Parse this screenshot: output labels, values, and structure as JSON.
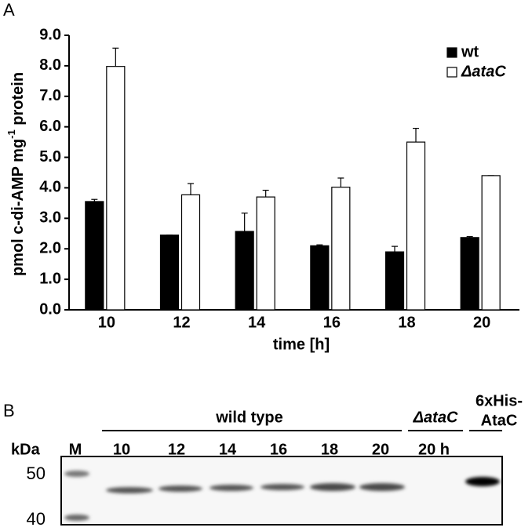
{
  "chart_data": {
    "type": "bar",
    "panel": "A",
    "y_label": [
      "pmol c-di-AMP mg",
      "-1",
      " protein"
    ],
    "x_label": "time [h]",
    "categories": [
      "10",
      "12",
      "14",
      "16",
      "18",
      "20"
    ],
    "series": [
      {
        "name": "wt",
        "color": "#000000",
        "values": [
          3.55,
          2.45,
          2.57,
          2.1,
          1.9,
          2.37
        ],
        "errors": [
          0.07,
          0,
          0.6,
          0.03,
          0.18,
          0.03
        ]
      },
      {
        "name": "ΔataC",
        "color": "#ffffff",
        "values": [
          7.98,
          3.77,
          3.7,
          4.02,
          5.5,
          4.4
        ],
        "errors": [
          0.6,
          0.37,
          0.22,
          0.3,
          0.45,
          0
        ]
      }
    ],
    "ylim": [
      0,
      9
    ],
    "yticks": [
      {
        "value": 0,
        "label": "0.0"
      },
      {
        "value": 1,
        "label": "1.0"
      },
      {
        "value": 2,
        "label": "2.0"
      },
      {
        "value": 3,
        "label": "3.0"
      },
      {
        "value": 4,
        "label": "4.0"
      },
      {
        "value": 5,
        "label": "5.0"
      },
      {
        "value": 6,
        "label": "6.0"
      },
      {
        "value": 7,
        "label": "7.0"
      },
      {
        "value": 8,
        "label": "8.0"
      },
      {
        "value": 9,
        "label": "9.0"
      }
    ],
    "legend": "upper right",
    "grid": false
  },
  "blot": {
    "panel": "B",
    "unit": "kDa",
    "marker_lane": "M",
    "markers": [
      "50",
      "40"
    ],
    "group": "wild type",
    "lanes": [
      "10",
      "12",
      "14",
      "16",
      "18",
      "20"
    ],
    "mutant": "ΔataC",
    "mutant_lane": "20 h",
    "control": [
      "6xHis-",
      "AtaC"
    ]
  }
}
